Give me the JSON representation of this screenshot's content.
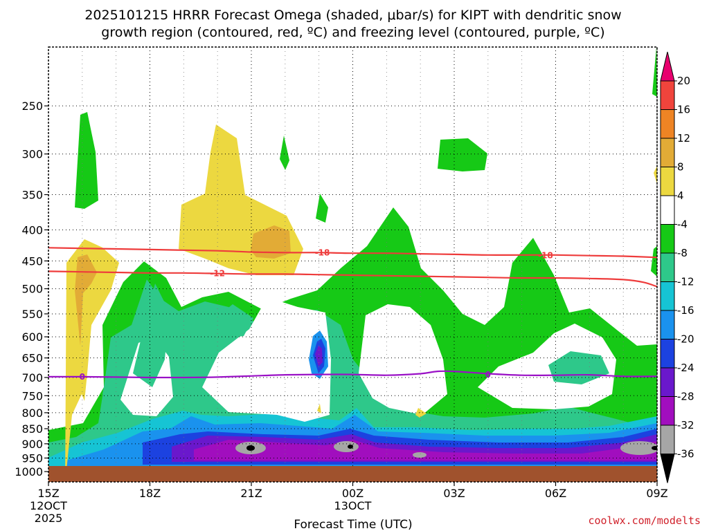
{
  "chart_data": {
    "type": "heatmap",
    "title_line1": "2025101215 HRRR Forecast Omega (shaded, μbar/s) for KIPT with dendritic snow",
    "title_line2": "growth region (contoured, red, ºC) and freezing level (contoured, purple, ºC)",
    "xlabel": "Forecast Time (UTC)",
    "credit": "coolwx.com/modelts",
    "x_range_hours": [
      0,
      18
    ],
    "y_axis": {
      "scale": "log-pressure",
      "range_mb": [
        200,
        1040
      ]
    },
    "x_ticks": [
      {
        "h": 0,
        "label": "15Z",
        "sub1": "12OCT",
        "sub2": "2025"
      },
      {
        "h": 3,
        "label": "18Z"
      },
      {
        "h": 6,
        "label": "21Z"
      },
      {
        "h": 9,
        "label": "00Z",
        "sub1": "13OCT"
      },
      {
        "h": 12,
        "label": "03Z"
      },
      {
        "h": 15,
        "label": "06Z"
      },
      {
        "h": 18,
        "label": "09Z"
      }
    ],
    "y_ticks": [
      {
        "p": 250,
        "label": "250"
      },
      {
        "p": 300,
        "label": "300"
      },
      {
        "p": 350,
        "label": "350"
      },
      {
        "p": 400,
        "label": "400"
      },
      {
        "p": 450,
        "label": "450"
      },
      {
        "p": 500,
        "label": "500"
      },
      {
        "p": 550,
        "label": "550"
      },
      {
        "p": 600,
        "label": "600"
      },
      {
        "p": 650,
        "label": "650"
      },
      {
        "p": 700,
        "label": "700"
      },
      {
        "p": 750,
        "label": "750"
      },
      {
        "p": 800,
        "label": "800"
      },
      {
        "p": 850,
        "label": "850"
      },
      {
        "p": 900,
        "label": "900"
      },
      {
        "p": 950,
        "label": "950"
      },
      {
        "p": 1000,
        "label": "1000"
      }
    ],
    "colorbar": {
      "labels": [
        "20",
        "16",
        "12",
        "8",
        "4",
        "-4",
        "-8",
        "-12",
        "-16",
        "-20",
        "-24",
        "-28",
        "-32",
        "-36"
      ],
      "levels": [
        20,
        16,
        12,
        8,
        4,
        -4,
        -8,
        -12,
        -16,
        -20,
        -24,
        -28,
        -32,
        -36
      ],
      "colors": {
        "gt20": "#e8006e",
        "16_20": "#f0443c",
        "12_16": "#ee8424",
        "8_12": "#e2ab36",
        "4_8": "#ecd840",
        "m4_4": "#ffffff",
        "m8_m4": "#16c916",
        "m12_m8": "#2ec88a",
        "m16_m12": "#16c4d4",
        "m20_m16": "#1a92ee",
        "m24_m20": "#1c42e0",
        "m28_m24": "#6a18cc",
        "m32_m28": "#a10ebe",
        "m36_m32": "#a6a6a6",
        "lt36": "#000000"
      }
    },
    "contours": [
      {
        "name": "minus18",
        "label": "-18",
        "color": "#ee3b3b",
        "points": [
          [
            0,
            428
          ],
          [
            1,
            429
          ],
          [
            2,
            430
          ],
          [
            3,
            431
          ],
          [
            4,
            432
          ],
          [
            5,
            433
          ],
          [
            6,
            435
          ],
          [
            7,
            436
          ],
          [
            8,
            436
          ],
          [
            9,
            437
          ],
          [
            10,
            437
          ],
          [
            11,
            438
          ],
          [
            12,
            439
          ],
          [
            13,
            440
          ],
          [
            14,
            440
          ],
          [
            15,
            440
          ],
          [
            16,
            441
          ],
          [
            17,
            442
          ],
          [
            18,
            444
          ]
        ],
        "label_points": [
          [
            8.1,
            436
          ],
          [
            14.7,
            441
          ]
        ]
      },
      {
        "name": "minus12",
        "label": "-12",
        "color": "#ee3b3b",
        "points": [
          [
            0,
            468
          ],
          [
            1,
            469
          ],
          [
            2,
            470
          ],
          [
            3,
            471
          ],
          [
            4,
            471
          ],
          [
            5,
            472
          ],
          [
            6,
            473
          ],
          [
            7,
            473
          ],
          [
            8,
            474
          ],
          [
            9,
            475
          ],
          [
            10,
            476
          ],
          [
            11,
            477
          ],
          [
            12,
            478
          ],
          [
            13,
            479
          ],
          [
            14,
            480
          ],
          [
            15,
            480
          ],
          [
            16,
            481
          ],
          [
            17,
            483
          ],
          [
            17.6,
            488
          ],
          [
            18,
            496
          ]
        ],
        "label_points": [
          [
            5,
            472
          ]
        ]
      },
      {
        "name": "freezing",
        "label": "0",
        "color": "#9a10c6",
        "points": [
          [
            0,
            698
          ],
          [
            1,
            698
          ],
          [
            2,
            699
          ],
          [
            3,
            700
          ],
          [
            4,
            700
          ],
          [
            5,
            699
          ],
          [
            6,
            696
          ],
          [
            7,
            693
          ],
          [
            8,
            692
          ],
          [
            9,
            692
          ],
          [
            10,
            694
          ],
          [
            11,
            690
          ],
          [
            11.5,
            684
          ],
          [
            12,
            684
          ],
          [
            13,
            690
          ],
          [
            14,
            694
          ],
          [
            15,
            694
          ],
          [
            16,
            693
          ],
          [
            17,
            697
          ],
          [
            18,
            697
          ]
        ],
        "label_points": [
          [
            1,
            698
          ],
          [
            13,
            693
          ]
        ]
      }
    ],
    "ground_bar_color": "#a0522d"
  }
}
